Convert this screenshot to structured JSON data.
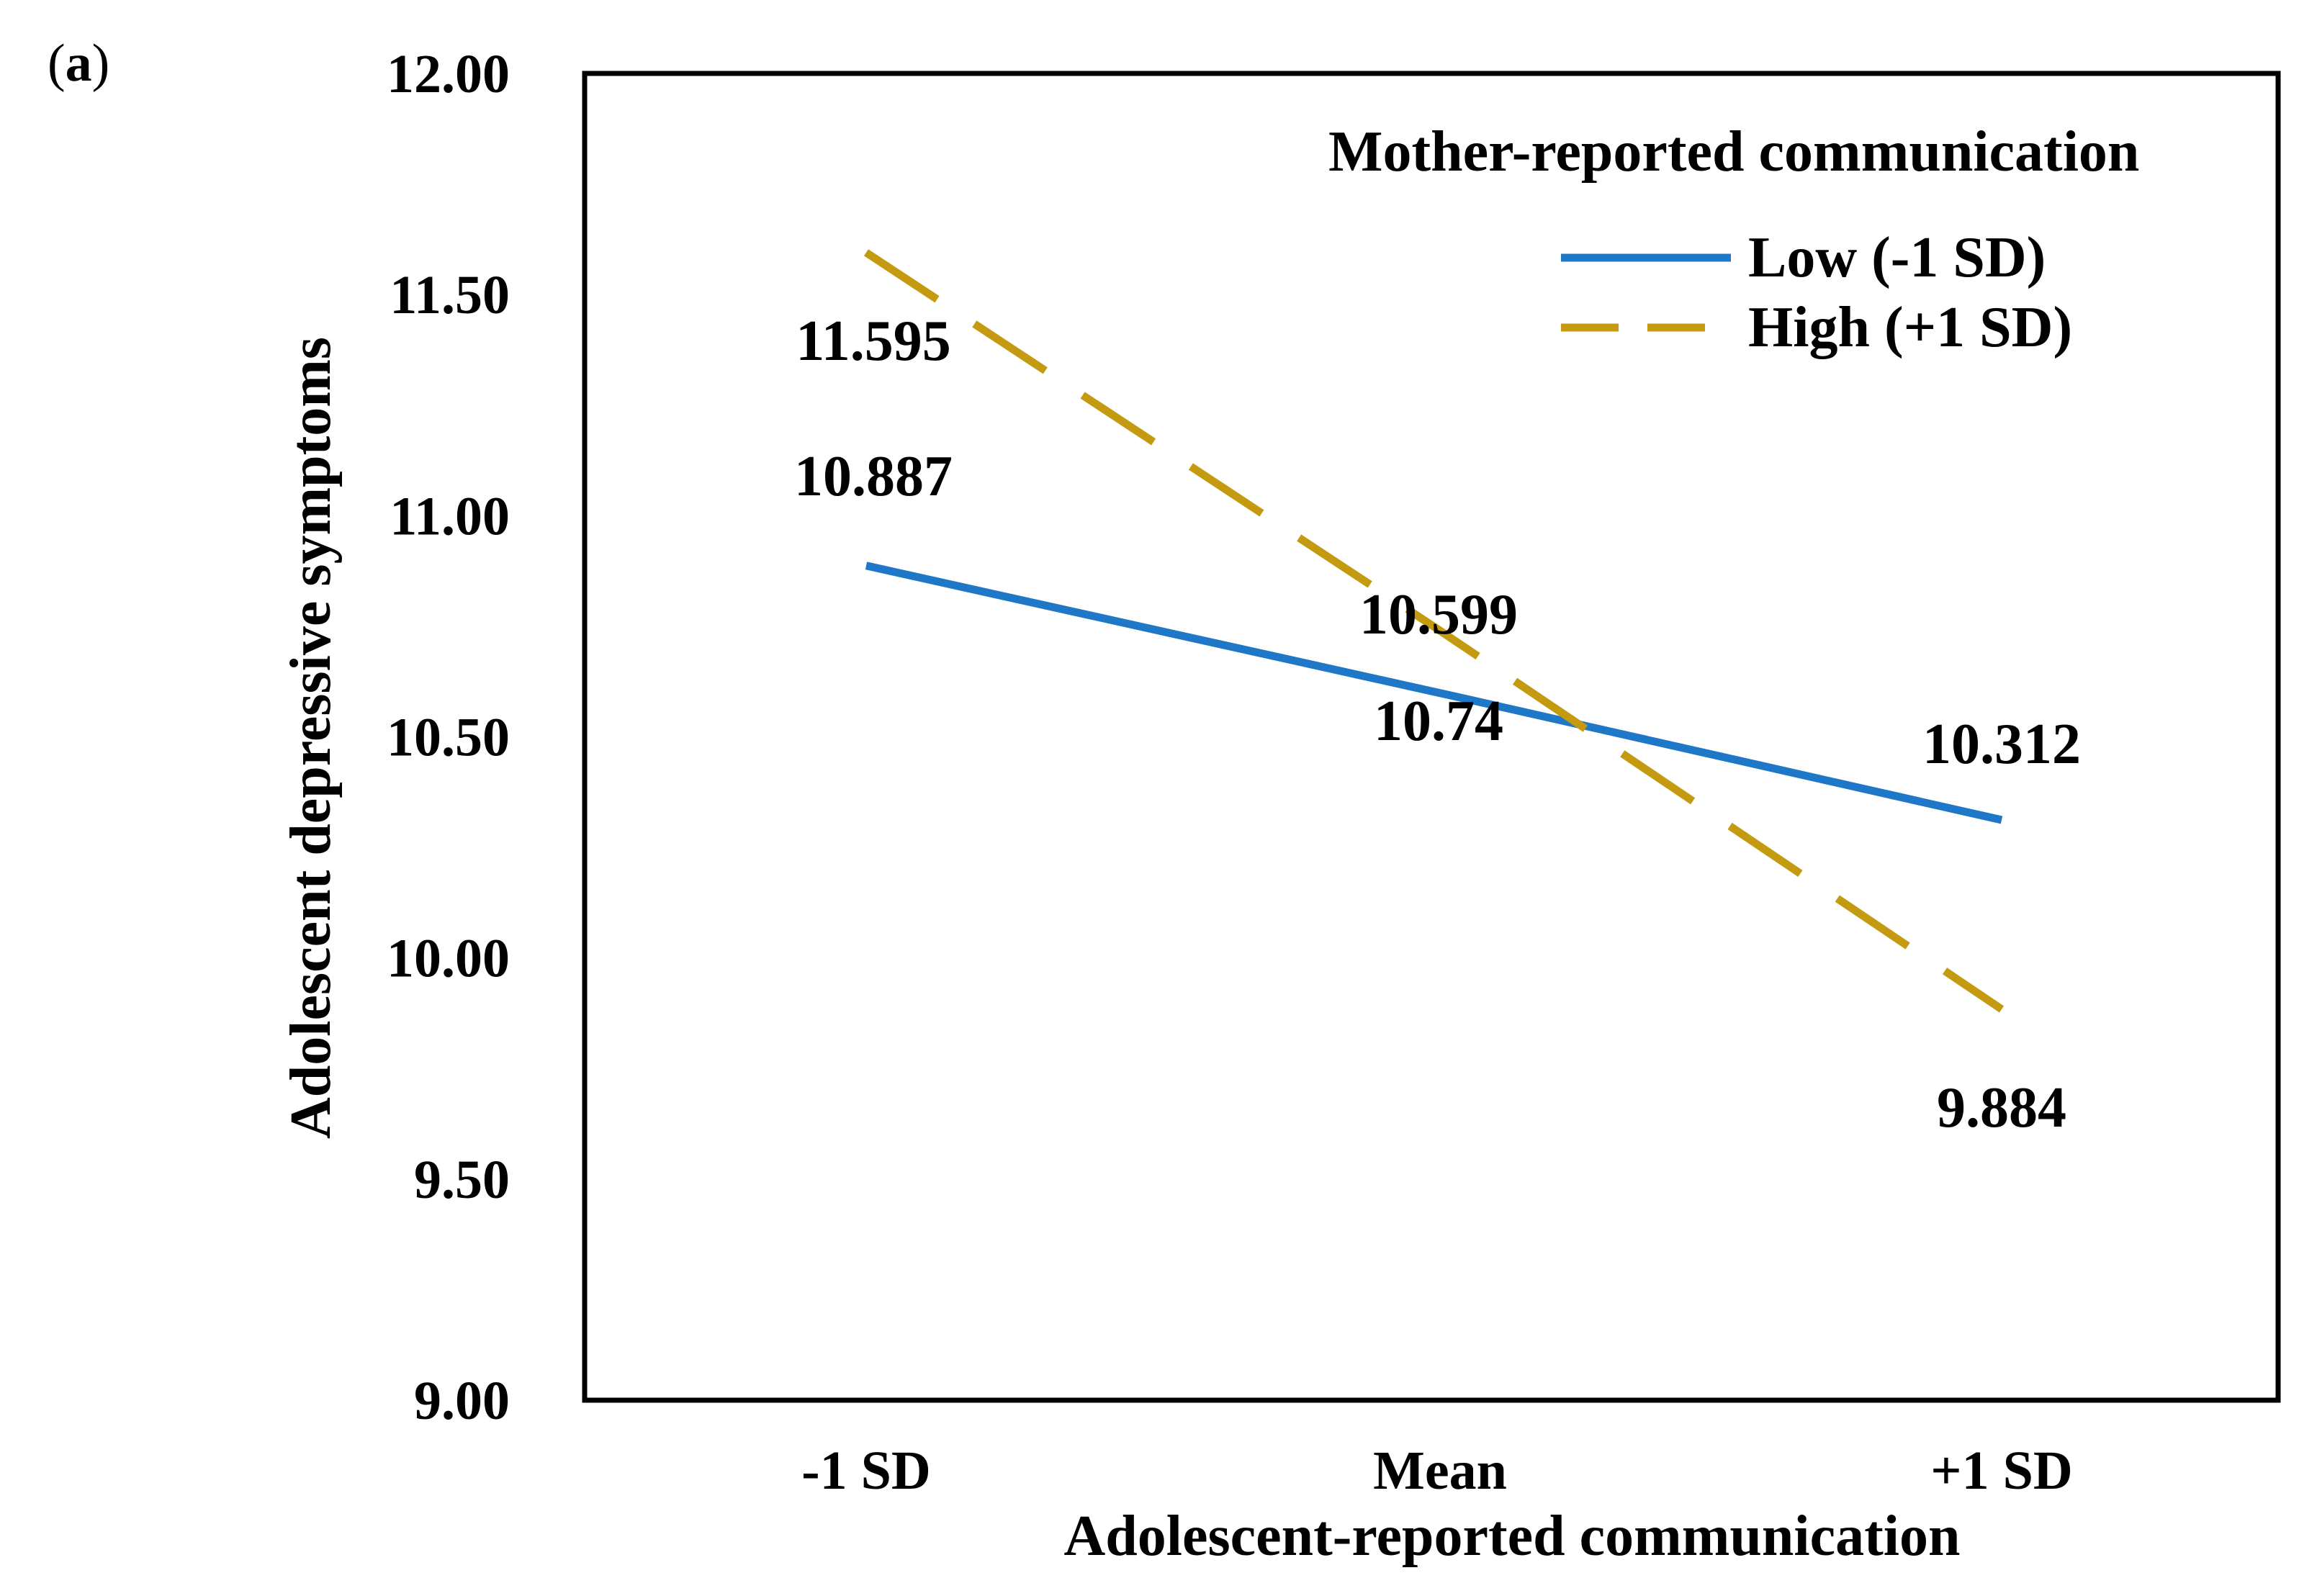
{
  "panel_label": {
    "open": "(",
    "letter": "a",
    "close": ")"
  },
  "chart_data": {
    "type": "line",
    "title": "",
    "xlabel": "Adolescent-reported communication",
    "ylabel": "Adolescent depressive symptoms",
    "categories": [
      "-1 SD",
      "Mean",
      "+1 SD"
    ],
    "ylim": [
      9.0,
      12.0
    ],
    "yticks": [
      "9.00",
      "9.50",
      "10.00",
      "10.50",
      "11.00",
      "11.50",
      "12.00"
    ],
    "legend": {
      "title": "Mother-reported communication",
      "position": "top-right"
    },
    "series": [
      {
        "name": "Low (-1 SD)",
        "values": [
          10.887,
          10.599,
          10.312
        ],
        "labels": [
          "10.887",
          "10.599",
          "10.312"
        ],
        "color": "#1f77c8",
        "style": "solid"
      },
      {
        "name": "High (+1 SD)",
        "values": [
          11.595,
          10.74,
          9.884
        ],
        "labels": [
          "11.595",
          "10.74",
          "9.884"
        ],
        "color": "#c49a10",
        "style": "dashed"
      }
    ],
    "grid": false
  }
}
